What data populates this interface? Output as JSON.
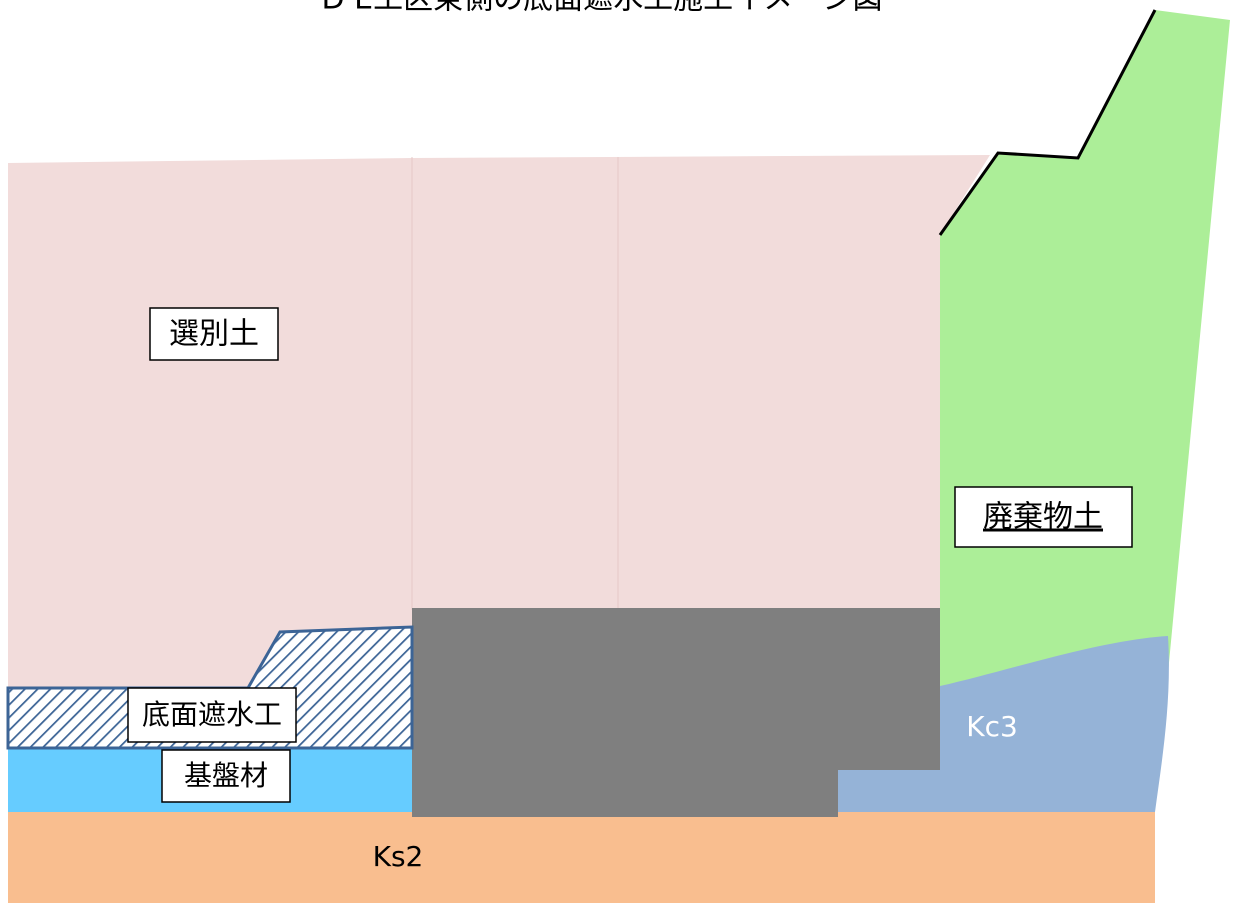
{
  "title": "D E工区東側の底面遮水工施工イメージ図",
  "labels": {
    "selected_soil": "選別土",
    "waste_soil": "廃棄物土",
    "bottom_barrier": "底面遮水工",
    "base_material": "基盤材",
    "kc3": "Kc3",
    "ks2": "Ks2"
  }
}
